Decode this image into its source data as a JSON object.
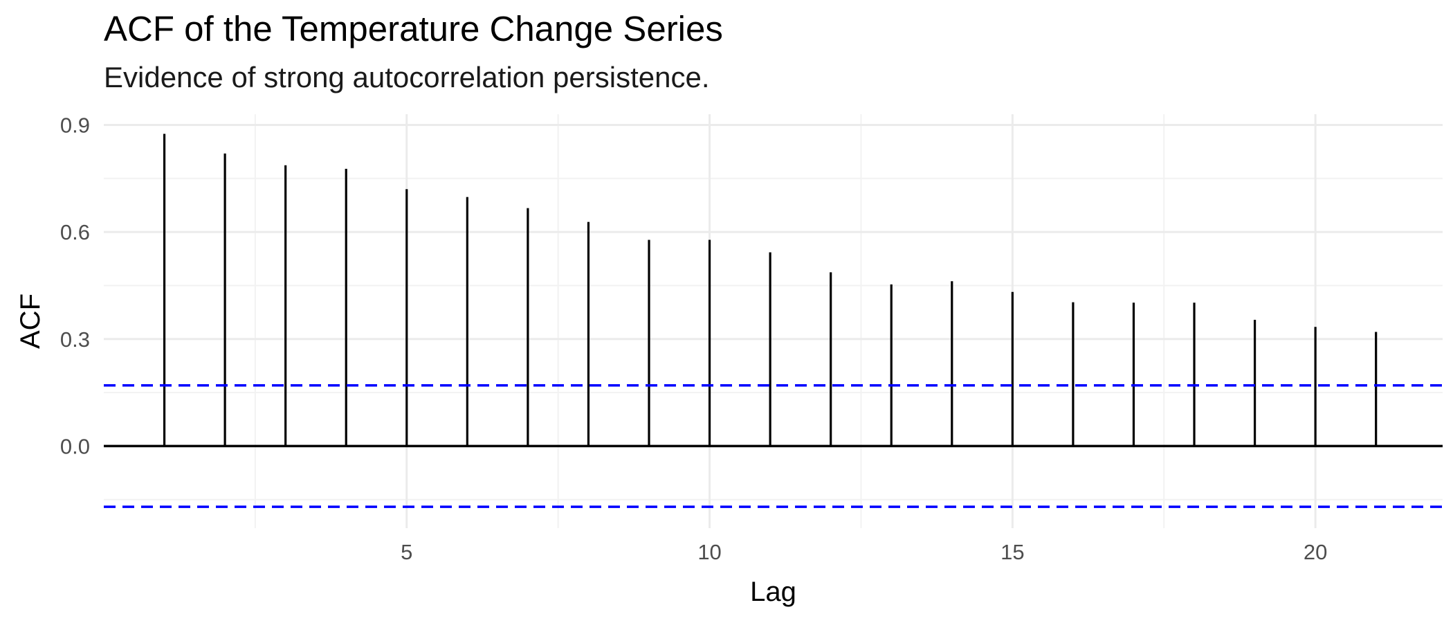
{
  "chart_data": {
    "type": "bar",
    "title": "ACF of the Temperature Change Series",
    "subtitle": "Evidence of strong autocorrelation persistence.",
    "xlabel": "Lag",
    "ylabel": "ACF",
    "x": [
      1,
      2,
      3,
      4,
      5,
      6,
      7,
      8,
      9,
      10,
      11,
      12,
      13,
      14,
      15,
      16,
      17,
      18,
      19,
      20,
      21
    ],
    "values": [
      0.875,
      0.82,
      0.787,
      0.777,
      0.72,
      0.698,
      0.667,
      0.628,
      0.578,
      0.578,
      0.543,
      0.487,
      0.453,
      0.462,
      0.432,
      0.403,
      0.402,
      0.402,
      0.354,
      0.334,
      0.32
    ],
    "confidence_bound": 0.17,
    "xlim": [
      0,
      22.1
    ],
    "ylim": [
      -0.23,
      0.93
    ],
    "xticks": [
      5,
      10,
      15,
      20
    ],
    "xtick_labels": [
      "5",
      "10",
      "15",
      "20"
    ],
    "yticks": [
      0.0,
      0.3,
      0.6,
      0.9
    ],
    "ytick_labels": [
      "0.0",
      "0.3",
      "0.6",
      "0.9"
    ],
    "grid": true,
    "colors": {
      "bars": "#000000",
      "confidence_lines": "#0000ff",
      "grid_major": "#ebebeb",
      "grid_minor": "#f2f2f2",
      "zero_line": "#000000"
    }
  }
}
